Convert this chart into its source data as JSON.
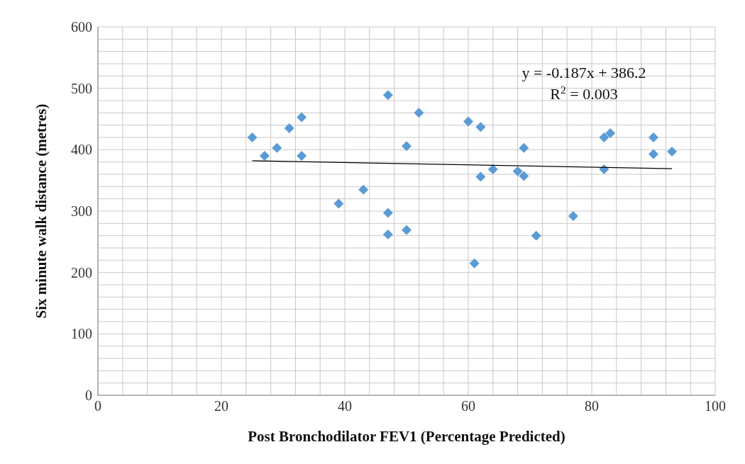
{
  "chart_data": {
    "type": "scatter",
    "xlabel": "Post Bronchodilator FEV1 (Percentage Predicted)",
    "ylabel": "Six minute walk distance (metres)",
    "xlim": [
      0,
      100
    ],
    "ylim": [
      0,
      600
    ],
    "xticks": [
      0,
      {
        "value": 4,
        "label": null
      },
      {
        "value": 8,
        "label": null
      },
      {
        "value": 12,
        "label": null
      },
      {
        "value": 16,
        "label": null
      },
      20,
      {
        "value": 24,
        "label": null
      },
      {
        "value": 28,
        "label": null
      },
      {
        "value": 32,
        "label": null
      },
      {
        "value": 36,
        "label": null
      },
      40,
      {
        "value": 44,
        "label": null
      },
      {
        "value": 48,
        "label": null
      },
      {
        "value": 52,
        "label": null
      },
      {
        "value": 56,
        "label": null
      },
      60,
      {
        "value": 64,
        "label": null
      },
      {
        "value": 68,
        "label": null
      },
      {
        "value": 72,
        "label": null
      },
      {
        "value": 76,
        "label": null
      },
      80,
      {
        "value": 84,
        "label": null
      },
      {
        "value": 88,
        "label": null
      },
      {
        "value": 92,
        "label": null
      },
      {
        "value": 96,
        "label": null
      },
      100
    ],
    "yticks": [
      0,
      {
        "value": 20,
        "label": null
      },
      {
        "value": 40,
        "label": null
      },
      {
        "value": 60,
        "label": null
      },
      {
        "value": 80,
        "label": null
      },
      100,
      {
        "value": 120,
        "label": null
      },
      {
        "value": 140,
        "label": null
      },
      {
        "value": 160,
        "label": null
      },
      {
        "value": 180,
        "label": null
      },
      200,
      {
        "value": 220,
        "label": null
      },
      {
        "value": 240,
        "label": null
      },
      {
        "value": 260,
        "label": null
      },
      {
        "value": 280,
        "label": null
      },
      300,
      {
        "value": 320,
        "label": null
      },
      {
        "value": 340,
        "label": null
      },
      {
        "value": 360,
        "label": null
      },
      {
        "value": 380,
        "label": null
      },
      400,
      {
        "value": 420,
        "label": null
      },
      {
        "value": 440,
        "label": null
      },
      {
        "value": 460,
        "label": null
      },
      {
        "value": 480,
        "label": null
      },
      500,
      {
        "value": 520,
        "label": null
      },
      {
        "value": 540,
        "label": null
      },
      {
        "value": 560,
        "label": null
      },
      {
        "value": 580,
        "label": null
      },
      600
    ],
    "grid": true,
    "annotations": [
      "y = -0.187x + 386.2",
      "R$^{2}$ = 0.003"
    ],
    "series": [
      {
        "marker": "diamond",
        "color": "#5b9bd5",
        "x": [
          25,
          27,
          29,
          31,
          33,
          33,
          39,
          43,
          47,
          47,
          47,
          50,
          50,
          52,
          60,
          61,
          62,
          62,
          64,
          68,
          69,
          69,
          71,
          77,
          82,
          82,
          83,
          90,
          90,
          93
        ],
        "values": [
          420,
          390,
          403,
          435,
          453,
          390,
          312,
          335,
          489,
          297,
          262,
          406,
          269,
          460,
          446,
          215,
          437,
          356,
          368,
          365,
          357,
          403,
          260,
          292,
          420,
          368,
          427,
          420,
          393,
          397
        ]
      },
      {
        "type": "line",
        "marker": "none",
        "color": "#000000",
        "x": [
          25,
          93
        ],
        "values": [
          382,
          369
        ]
      }
    ]
  }
}
